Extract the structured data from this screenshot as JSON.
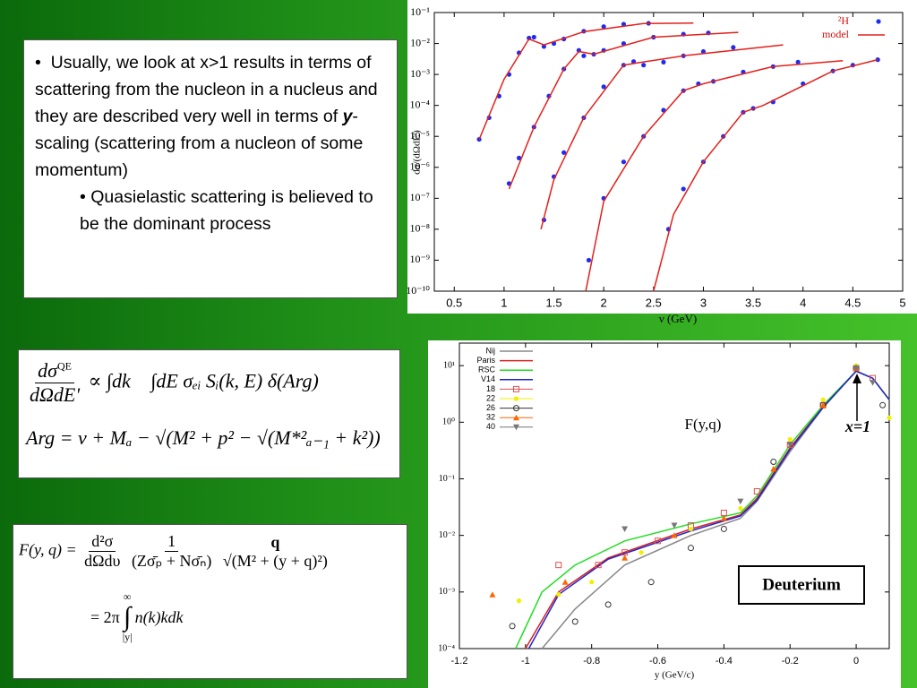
{
  "bullets": {
    "main": [
      "Usually, we look at x>1 results in terms of scattering from the nucleon in a nucleus and they are described very well in terms of ",
      "y",
      "-scaling (scattering from a nucleon of some momentum)"
    ],
    "sub": "Quasielastic scattering is believed to be the dominant process"
  },
  "equations": {
    "eq1": {
      "num": "dσ",
      "num_sup": "QE",
      "den": "dΩdE'",
      "rest": "∝ ∫dk⃗ ∫dE σₑᵢ Sᵢ(k, E) δ(Arg)"
    },
    "eq2": "Arg = ν + Mₐ − √(M² + p² − √(M*²ₐ₋₁ + k²))",
    "eq3": {
      "lhs": "F(y, q) =",
      "f1_num": "d²σ",
      "f1_den": "dΩdυ",
      "f2_num": "1",
      "f2_den": "(Zσ̄ₚ + Nσ̄ₙ)",
      "f3_num": "q",
      "f3_den": "√(M² + (y + q)²)"
    },
    "eq4": {
      "lhs": "= 2π",
      "upper": "∞",
      "lower": "|y|",
      "integrand": "n(k)kdk"
    }
  },
  "chart_data": [
    {
      "type": "scatter",
      "log_y": true,
      "xlabel": "ν (GeV)",
      "ylabel": "dσ/(dΩdE')",
      "xlim": [
        0.3,
        5
      ],
      "xticks": [
        0.5,
        1,
        1.5,
        2,
        2.5,
        3,
        3.5,
        4,
        4.5,
        5
      ],
      "ylim": [
        1e-10,
        0.1
      ],
      "yticks": [
        {
          "value": 1e-10,
          "label": "10⁻¹⁰"
        },
        {
          "value": 1e-09,
          "label": "10⁻⁹"
        },
        {
          "value": 1e-08,
          "label": "10⁻⁸"
        },
        {
          "value": 1e-07,
          "label": "10⁻⁷"
        },
        {
          "value": 1e-06,
          "label": "10⁻⁶"
        },
        {
          "value": 1e-05,
          "label": "10⁻⁵"
        },
        {
          "value": 0.0001,
          "label": "10⁻⁴"
        },
        {
          "value": 0.001,
          "label": "10⁻³"
        },
        {
          "value": 0.01,
          "label": "10⁻²"
        },
        {
          "value": 0.1,
          "label": "10⁻¹"
        }
      ],
      "legend": "upper right",
      "series": [
        {
          "name": "²H",
          "style": "points",
          "marker": "dot",
          "color": "#1f2cf0",
          "curves": [
            {
              "x": [
                0.75,
                0.85,
                0.95,
                1.05,
                1.15,
                1.25,
                1.3,
                1.4,
                1.5,
                1.6,
                1.8,
                2.0,
                2.2,
                2.45
              ],
              "values": [
                8e-06,
                4e-05,
                0.0002,
                0.001,
                0.005,
                0.015,
                0.016,
                0.008,
                0.01,
                0.014,
                0.025,
                0.035,
                0.042,
                0.045
              ]
            },
            {
              "x": [
                1.05,
                1.15,
                1.3,
                1.45,
                1.6,
                1.75,
                1.8,
                1.9,
                2.0,
                2.2,
                2.5,
                2.8,
                3.05
              ],
              "values": [
                3e-07,
                2e-06,
                2e-05,
                0.0002,
                0.0015,
                0.006,
                0.004,
                0.0045,
                0.006,
                0.01,
                0.016,
                0.02,
                0.022
              ]
            },
            {
              "x": [
                1.4,
                1.5,
                1.6,
                1.8,
                2.0,
                2.2,
                2.3,
                2.4,
                2.6,
                2.8,
                3.0,
                3.3
              ],
              "values": [
                2e-08,
                5e-07,
                3e-06,
                4e-05,
                0.0004,
                0.002,
                0.0026,
                0.002,
                0.0025,
                0.004,
                0.0055,
                0.0075
              ]
            },
            {
              "x": [
                1.85,
                2.0,
                2.2,
                2.4,
                2.6,
                2.8,
                2.95,
                3.1,
                3.4,
                3.7,
                3.95
              ],
              "values": [
                1e-09,
                1e-07,
                1.5e-06,
                1e-05,
                7e-05,
                0.0003,
                0.0005,
                0.0006,
                0.0012,
                0.0018,
                0.0025
              ]
            },
            {
              "x": [
                2.65,
                2.8,
                3.0,
                3.2,
                3.4,
                3.5,
                3.7,
                4.0,
                4.3,
                4.5,
                4.75
              ],
              "values": [
                1e-08,
                2e-07,
                1.5e-06,
                1e-05,
                6e-05,
                8e-05,
                0.00013,
                0.0005,
                0.0013,
                0.002,
                0.003
              ]
            }
          ]
        },
        {
          "name": "model",
          "style": "line",
          "color": "#e3201b",
          "curves": [
            {
              "x": [
                0.75,
                1.0,
                1.25,
                1.4,
                1.8,
                2.4,
                2.9
              ],
              "values": [
                8e-06,
                0.0007,
                0.014,
                0.009,
                0.024,
                0.044,
                0.046
              ]
            },
            {
              "x": [
                1.05,
                1.3,
                1.6,
                1.75,
                1.9,
                2.5,
                3.35
              ],
              "values": [
                2e-07,
                2e-05,
                0.0015,
                0.0055,
                0.0045,
                0.016,
                0.023
              ]
            },
            {
              "x": [
                1.37,
                1.5,
                1.8,
                2.2,
                2.35,
                2.8,
                3.8
              ],
              "values": [
                1e-08,
                4e-07,
                4e-05,
                0.002,
                0.0024,
                0.004,
                0.009
              ]
            },
            {
              "x": [
                1.82,
                2.0,
                2.4,
                2.8,
                3.0,
                3.7,
                4.4
              ],
              "values": [
                1e-10,
                8e-08,
                1e-05,
                0.0003,
                0.0005,
                0.0018,
                0.0028
              ]
            },
            {
              "x": [
                2.5,
                2.7,
                3.0,
                3.4,
                3.6,
                4.3,
                4.75
              ],
              "values": [
                1e-10,
                3e-08,
                1.5e-06,
                6e-05,
                0.0001,
                0.0013,
                0.003
              ]
            }
          ]
        }
      ]
    },
    {
      "type": "scatter",
      "log_y": true,
      "xlabel": "y (GeV/c)",
      "xlim": [
        -1.2,
        0.1
      ],
      "xticks": [
        -1.2,
        -1,
        -0.8,
        -0.6,
        -0.4,
        -0.2,
        0
      ],
      "ylim": [
        0.0001,
        25
      ],
      "yticks": [
        {
          "value": 0.0001,
          "label": "10⁻⁴"
        },
        {
          "value": 0.001,
          "label": "10⁻³"
        },
        {
          "value": 0.01,
          "label": "10⁻²"
        },
        {
          "value": 0.1,
          "label": "10⁻¹"
        },
        {
          "value": 1,
          "label": "10⁰"
        },
        {
          "value": 10,
          "label": "10¹"
        }
      ],
      "legend": "upper left",
      "annotations": [
        "F(y,q)",
        "x=1",
        "Deuterium"
      ],
      "series": [
        {
          "name": "Nij",
          "style": "line",
          "color": "#888888",
          "x": [
            -0.95,
            -0.85,
            -0.7,
            -0.5,
            -0.35,
            -0.3,
            -0.2,
            -0.1,
            0,
            0.05,
            0.1
          ],
          "values": [
            0.0001,
            0.0005,
            0.003,
            0.01,
            0.02,
            0.04,
            0.3,
            1.8,
            8,
            6,
            2.5
          ]
        },
        {
          "name": "Paris",
          "style": "line",
          "color": "#d62020",
          "x": [
            -1.0,
            -0.9,
            -0.75,
            -0.5,
            -0.35,
            -0.3,
            -0.2,
            -0.1,
            0,
            0.05,
            0.1
          ],
          "values": [
            0.0001,
            0.001,
            0.004,
            0.013,
            0.023,
            0.045,
            0.35,
            1.9,
            8,
            6,
            2.5
          ]
        },
        {
          "name": "RSC",
          "style": "line",
          "color": "#22dd22",
          "x": [
            -1.03,
            -0.95,
            -0.85,
            -0.7,
            -0.5,
            -0.35,
            -0.3,
            -0.2,
            -0.1,
            0,
            0.05,
            0.1
          ],
          "values": [
            0.0001,
            0.001,
            0.003,
            0.008,
            0.016,
            0.025,
            0.05,
            0.4,
            2,
            8,
            6,
            2.5
          ]
        },
        {
          "name": "V14",
          "style": "line",
          "color": "#2222cc",
          "x": [
            -0.99,
            -0.9,
            -0.75,
            -0.5,
            -0.35,
            -0.3,
            -0.2,
            -0.1,
            0,
            0.05,
            0.1
          ],
          "values": [
            0.0001,
            0.0009,
            0.0038,
            0.012,
            0.022,
            0.042,
            0.33,
            1.85,
            8,
            6,
            2.5
          ]
        },
        {
          "name": "18",
          "style": "points",
          "marker": "square-open",
          "color": "#e05050",
          "x": [
            -0.9,
            -0.78,
            -0.7,
            -0.6,
            -0.5,
            -0.4,
            -0.3,
            -0.2,
            -0.1,
            0,
            0.05
          ],
          "values": [
            0.003,
            0.003,
            0.005,
            0.008,
            0.015,
            0.025,
            0.06,
            0.4,
            2,
            9,
            6
          ]
        },
        {
          "name": "22",
          "style": "points",
          "marker": "dot",
          "color": "#f0f000",
          "x": [
            -1.02,
            -0.9,
            -0.8,
            -0.65,
            -0.5,
            -0.35,
            -0.2,
            -0.1,
            0,
            0.1
          ],
          "values": [
            0.0007,
            0.0009,
            0.0015,
            0.005,
            0.013,
            0.03,
            0.5,
            2.5,
            10,
            1.2
          ]
        },
        {
          "name": "26",
          "style": "points",
          "marker": "circle-open",
          "color": "#333333",
          "x": [
            -1.04,
            -0.85,
            -0.75,
            -0.62,
            -0.5,
            -0.4,
            -0.25,
            -0.1,
            0,
            0.08
          ],
          "values": [
            0.00025,
            0.0003,
            0.0006,
            0.0015,
            0.006,
            0.013,
            0.2,
            2,
            9,
            2
          ]
        },
        {
          "name": "32",
          "style": "points",
          "marker": "triangle",
          "color": "#ff6600",
          "x": [
            -1.1,
            -0.88,
            -0.7,
            -0.55,
            -0.4,
            -0.25,
            -0.1,
            0
          ],
          "values": [
            0.0009,
            0.0015,
            0.004,
            0.01,
            0.02,
            0.15,
            2,
            9
          ]
        },
        {
          "name": "40",
          "style": "points",
          "marker": "triangle-down",
          "color": "#777777",
          "x": [
            -0.7,
            -0.55,
            -0.35,
            -0.2,
            0,
            0.05
          ],
          "values": [
            0.013,
            0.015,
            0.04,
            0.4,
            9,
            5
          ]
        }
      ]
    }
  ]
}
